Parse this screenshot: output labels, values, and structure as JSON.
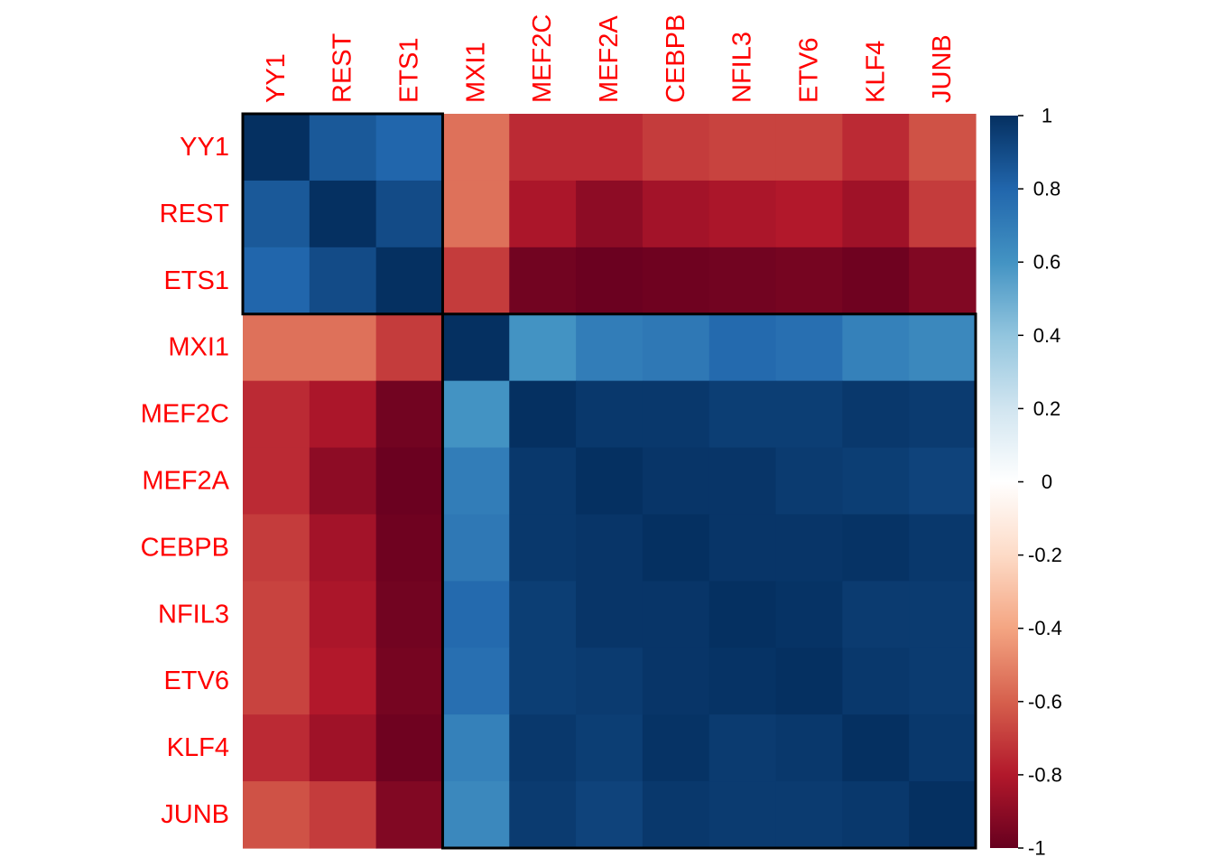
{
  "chart_data": {
    "type": "heatmap",
    "title": "",
    "labels": [
      "YY1",
      "REST",
      "ETS1",
      "MXI1",
      "MEF2C",
      "MEF2A",
      "CEBPB",
      "NFIL3",
      "ETV6",
      "KLF4",
      "JUNB"
    ],
    "values": [
      [
        1.0,
        0.85,
        0.8,
        -0.55,
        -0.75,
        -0.75,
        -0.7,
        -0.68,
        -0.68,
        -0.75,
        -0.64
      ],
      [
        0.85,
        1.0,
        0.9,
        -0.55,
        -0.82,
        -0.9,
        -0.84,
        -0.82,
        -0.8,
        -0.85,
        -0.7
      ],
      [
        0.8,
        0.9,
        1.0,
        -0.7,
        -0.97,
        -0.99,
        -0.98,
        -0.97,
        -0.96,
        -0.98,
        -0.93
      ],
      [
        -0.55,
        -0.55,
        -0.7,
        1.0,
        0.6,
        0.7,
        0.72,
        0.78,
        0.76,
        0.68,
        0.65
      ],
      [
        -0.75,
        -0.82,
        -0.97,
        0.6,
        1.0,
        0.97,
        0.97,
        0.95,
        0.95,
        0.97,
        0.96
      ],
      [
        -0.75,
        -0.9,
        -0.99,
        0.7,
        0.97,
        1.0,
        0.98,
        0.98,
        0.96,
        0.95,
        0.93
      ],
      [
        -0.7,
        -0.84,
        -0.98,
        0.72,
        0.97,
        0.98,
        1.0,
        0.98,
        0.98,
        0.99,
        0.97
      ],
      [
        -0.68,
        -0.82,
        -0.97,
        0.78,
        0.95,
        0.98,
        0.98,
        1.0,
        0.99,
        0.96,
        0.96
      ],
      [
        -0.68,
        -0.8,
        -0.96,
        0.76,
        0.95,
        0.96,
        0.98,
        0.99,
        1.0,
        0.97,
        0.96
      ],
      [
        -0.75,
        -0.85,
        -0.98,
        0.68,
        0.97,
        0.95,
        0.99,
        0.96,
        0.97,
        1.0,
        0.97
      ],
      [
        -0.64,
        -0.7,
        -0.93,
        0.65,
        0.96,
        0.93,
        0.97,
        0.96,
        0.96,
        0.97,
        1.0
      ]
    ],
    "clusters": [
      {
        "start": 0,
        "end": 2
      },
      {
        "start": 3,
        "end": 10
      }
    ],
    "colorbar": {
      "range": [
        -1,
        1
      ],
      "ticks": [
        "1",
        "0.8",
        "0.6",
        "0.4",
        "0.2",
        "0",
        "-0.2",
        "-0.4",
        "-0.6",
        "-0.8",
        "-1"
      ],
      "tick_values": [
        1,
        0.8,
        0.6,
        0.4,
        0.2,
        0,
        -0.2,
        -0.4,
        -0.6,
        -0.8,
        -1
      ],
      "palette": [
        "#67001F",
        "#B2182B",
        "#D6604D",
        "#F4A582",
        "#FDDBC7",
        "#FFFFFF",
        "#D1E5F0",
        "#92C5DE",
        "#4393C3",
        "#2166AC",
        "#053061"
      ]
    },
    "label_color": "#FF0000",
    "grid": false
  }
}
